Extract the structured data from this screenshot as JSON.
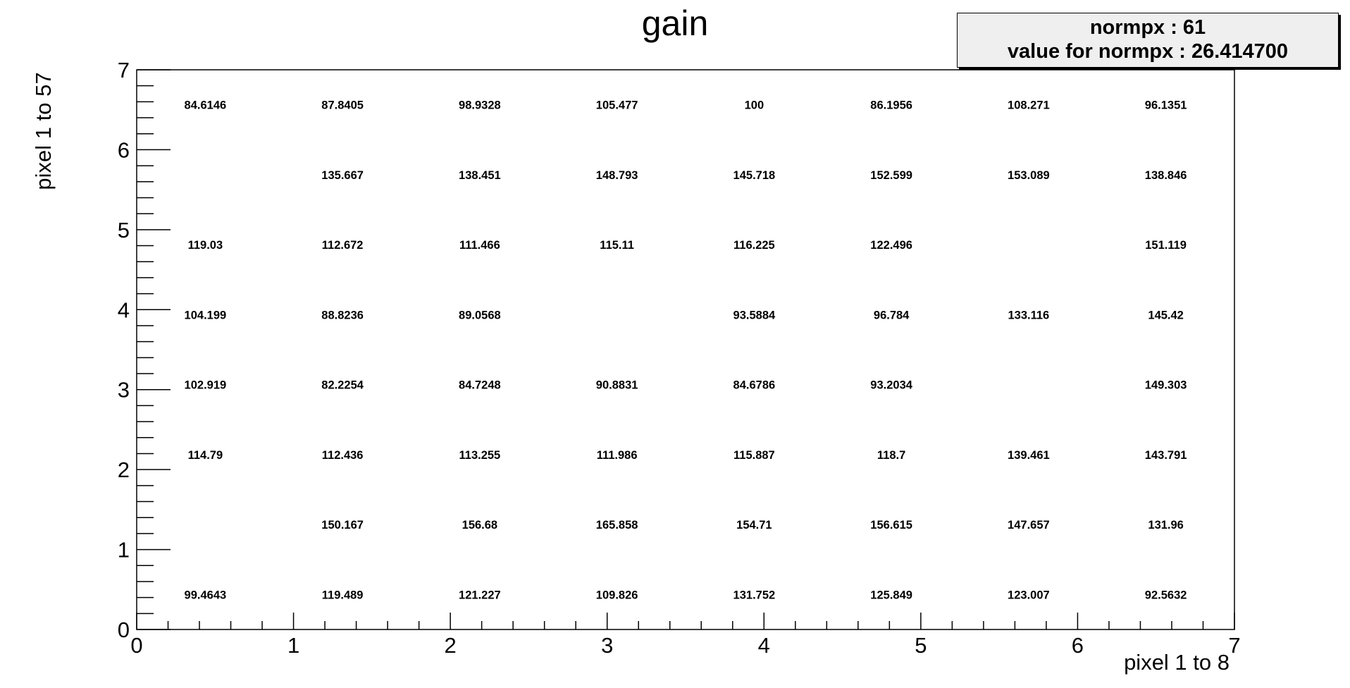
{
  "chart_data": {
    "type": "table",
    "title": "gain",
    "xlabel": "pixel 1 to 8",
    "ylabel": "pixel 1 to 57",
    "xlim": [
      0,
      7
    ],
    "ylim": [
      0,
      7
    ],
    "x_ticks": [
      "0",
      "1",
      "2",
      "3",
      "4",
      "5",
      "6",
      "7"
    ],
    "y_ticks": [
      "0",
      "1",
      "2",
      "3",
      "4",
      "5",
      "6",
      "7"
    ],
    "columns": 8,
    "rows": 8,
    "cells": [
      [
        "99.4643",
        "119.489",
        "121.227",
        "109.826",
        "131.752",
        "125.849",
        "123.007",
        "92.5632"
      ],
      [
        "",
        "150.167",
        "156.68",
        "165.858",
        "154.71",
        "156.615",
        "147.657",
        "131.96"
      ],
      [
        "114.79",
        "112.436",
        "113.255",
        "111.986",
        "115.887",
        "118.7",
        "139.461",
        "143.791"
      ],
      [
        "102.919",
        "82.2254",
        "84.7248",
        "90.8831",
        "84.6786",
        "93.2034",
        "",
        "149.303"
      ],
      [
        "104.199",
        "88.8236",
        "89.0568",
        "",
        "93.5884",
        "96.784",
        "133.116",
        "145.42"
      ],
      [
        "119.03",
        "112.672",
        "111.466",
        "115.11",
        "116.225",
        "122.496",
        "",
        "151.119"
      ],
      [
        "",
        "135.667",
        "138.451",
        "148.793",
        "145.718",
        "152.599",
        "153.089",
        "138.846"
      ],
      [
        "84.6146",
        "87.8405",
        "98.9328",
        "105.477",
        "100",
        "86.1956",
        "108.271",
        "96.1351"
      ]
    ],
    "cells_row_order": "bottom-to-top",
    "grid": false,
    "legend": "none"
  },
  "stats": {
    "line1": "normpx : 61",
    "line2": "value for normpx : 26.414700"
  }
}
